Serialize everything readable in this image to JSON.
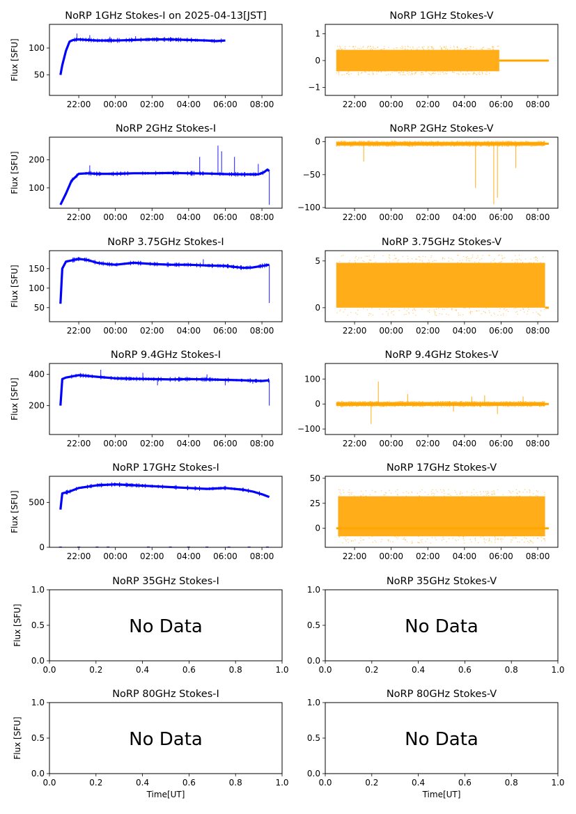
{
  "colors": {
    "stokes_i": "#0000ff",
    "stokes_v": "#ffa500",
    "axes": "#000000"
  },
  "chart_data": [
    {
      "id": "i1",
      "type": "line",
      "title": "NoRP 1GHz Stokes-I on 2025-04-13[JST]",
      "xlabel": "",
      "ylabel": "Flux [SFU]",
      "xlim": [
        20.4,
        33.1
      ],
      "ylim": [
        12,
        144
      ],
      "xticks": [
        22,
        24,
        26,
        28,
        30,
        32
      ],
      "xtick_labels": [
        "22:00",
        "00:00",
        "02:00",
        "04:00",
        "06:00",
        "08:00"
      ],
      "yticks": [
        50,
        100
      ],
      "ytick_labels": [
        "50",
        "100"
      ],
      "series": [
        {
          "color": "#0000ff",
          "x": [
            21.0,
            21.1,
            21.3,
            21.5,
            21.7,
            22.0,
            22.5,
            23.0,
            24.0,
            25.0,
            26.0,
            27.0,
            28.0,
            29.0,
            29.5,
            30.0
          ],
          "y": [
            50,
            68,
            95,
            112,
            115,
            116,
            115,
            114,
            114,
            115,
            116,
            116,
            115,
            114,
            113,
            114
          ]
        }
      ],
      "spikes": [
        {
          "color": "#0000ff",
          "x": [
            21.9,
            22.6,
            23.7,
            25.1
          ],
          "y": [
            127,
            124,
            121,
            122
          ]
        }
      ],
      "noise": null,
      "no_data": false
    },
    {
      "id": "v1",
      "type": "scatter",
      "title": "NoRP 1GHz Stokes-V",
      "xlabel": "",
      "ylabel": "",
      "xlim": [
        20.4,
        33.1
      ],
      "ylim": [
        -1.3,
        1.35
      ],
      "xticks": [
        22,
        24,
        26,
        28,
        30,
        32
      ],
      "xtick_labels": [
        "22:00",
        "00:00",
        "02:00",
        "04:00",
        "06:00",
        "08:00"
      ],
      "yticks": [
        -1,
        0,
        1
      ],
      "ytick_labels": [
        "−1",
        "0",
        "1"
      ],
      "series": [
        {
          "color": "#ffa500",
          "x": [
            29.9,
            32.6
          ],
          "y": [
            0,
            0
          ]
        }
      ],
      "spikes": [],
      "noise": {
        "color": "#ffa500",
        "x_start": 21.0,
        "x_end": 29.9,
        "center": 0,
        "amplitude": 0.4
      },
      "no_data": false
    },
    {
      "id": "i2",
      "type": "line",
      "title": "NoRP 2GHz Stokes-I",
      "xlabel": "",
      "ylabel": "Flux [SFU]",
      "xlim": [
        20.4,
        33.1
      ],
      "ylim": [
        28,
        280
      ],
      "xticks": [
        22,
        24,
        26,
        28,
        30,
        32
      ],
      "xtick_labels": [
        "22:00",
        "00:00",
        "02:00",
        "04:00",
        "06:00",
        "08:00"
      ],
      "yticks": [
        100,
        200
      ],
      "ytick_labels": [
        "100",
        "200"
      ],
      "series": [
        {
          "color": "#0000ff",
          "x": [
            21.0,
            21.3,
            21.6,
            22.0,
            22.5,
            23.0,
            24.0,
            25.0,
            26.0,
            27.0,
            28.0,
            29.0,
            30.0,
            31.0,
            31.8,
            32.1,
            32.3,
            32.4
          ],
          "y": [
            40,
            80,
            125,
            150,
            152,
            150,
            150,
            152,
            152,
            153,
            152,
            151,
            149,
            148,
            148,
            155,
            165,
            160
          ]
        }
      ],
      "spikes": [
        {
          "color": "#0000ff",
          "x": [
            22.6,
            28.6,
            29.6,
            29.8,
            30.5,
            31.8,
            32.4
          ],
          "y": [
            180,
            210,
            250,
            230,
            210,
            185,
            40
          ]
        }
      ],
      "noise": null,
      "no_data": false
    },
    {
      "id": "v2",
      "type": "scatter",
      "title": "NoRP 2GHz Stokes-V",
      "xlabel": "",
      "ylabel": "",
      "xlim": [
        20.4,
        33.1
      ],
      "ylim": [
        -101,
        7
      ],
      "xticks": [
        22,
        24,
        26,
        28,
        30,
        32
      ],
      "xtick_labels": [
        "22:00",
        "00:00",
        "02:00",
        "04:00",
        "06:00",
        "08:00"
      ],
      "yticks": [
        -100,
        -50,
        0
      ],
      "ytick_labels": [
        "−100",
        "−50",
        "0"
      ],
      "series": [
        {
          "color": "#ffa500",
          "x": [
            21.0,
            32.6
          ],
          "y": [
            -3,
            -3
          ]
        }
      ],
      "spikes": [
        {
          "color": "#ffa500",
          "x": [
            22.5,
            28.6,
            29.6,
            29.8,
            30.8
          ],
          "y": [
            -30,
            -70,
            -95,
            -85,
            -40
          ]
        }
      ],
      "noise": {
        "color": "#ffa500",
        "x_start": 21.0,
        "x_end": 32.4,
        "center": -3,
        "amplitude": 3
      },
      "no_data": false
    },
    {
      "id": "i3",
      "type": "line",
      "title": "NoRP 3.75GHz Stokes-I",
      "xlabel": "",
      "ylabel": "Flux [SFU]",
      "xlim": [
        20.4,
        33.1
      ],
      "ylim": [
        14,
        196
      ],
      "xticks": [
        22,
        24,
        26,
        28,
        30,
        32
      ],
      "xtick_labels": [
        "22:00",
        "00:00",
        "02:00",
        "04:00",
        "06:00",
        "08:00"
      ],
      "yticks": [
        50,
        100,
        150
      ],
      "ytick_labels": [
        "50",
        "100",
        "150"
      ],
      "series": [
        {
          "color": "#0000ff",
          "x": [
            21.0,
            21.1,
            21.3,
            22.0,
            22.5,
            23.0,
            23.5,
            24.0,
            25.0,
            26.0,
            27.0,
            28.0,
            29.0,
            30.0,
            31.0,
            31.5,
            32.0,
            32.4
          ],
          "y": [
            60,
            150,
            168,
            175,
            172,
            165,
            162,
            160,
            165,
            162,
            160,
            160,
            158,
            157,
            152,
            153,
            157,
            160
          ]
        }
      ],
      "spikes": [
        {
          "color": "#0000ff",
          "x": [
            28.8,
            32.4
          ],
          "y": [
            174,
            62
          ]
        }
      ],
      "noise": null,
      "no_data": false
    },
    {
      "id": "v3",
      "type": "scatter",
      "title": "NoRP 3.75GHz Stokes-V",
      "xlabel": "",
      "ylabel": "",
      "xlim": [
        20.4,
        33.1
      ],
      "ylim": [
        -1.5,
        6.1
      ],
      "xticks": [
        22,
        24,
        26,
        28,
        30,
        32
      ],
      "xtick_labels": [
        "22:00",
        "00:00",
        "02:00",
        "04:00",
        "06:00",
        "08:00"
      ],
      "yticks": [
        0,
        5
      ],
      "ytick_labels": [
        "0",
        "5"
      ],
      "series": [
        {
          "color": "#ffa500",
          "x": [
            32.4,
            32.6
          ],
          "y": [
            0,
            0
          ]
        }
      ],
      "spikes": [],
      "noise": {
        "color": "#ffa500",
        "x_start": 21.0,
        "x_end": 32.4,
        "center": 2.4,
        "amplitude": 2.4
      },
      "no_data": false
    },
    {
      "id": "i4",
      "type": "line",
      "title": "NoRP 9.4GHz Stokes-I",
      "xlabel": "",
      "ylabel": "Flux [SFU]",
      "xlim": [
        20.4,
        33.1
      ],
      "ylim": [
        15,
        470
      ],
      "xticks": [
        22,
        24,
        26,
        28,
        30,
        32
      ],
      "xtick_labels": [
        "22:00",
        "00:00",
        "02:00",
        "04:00",
        "06:00",
        "08:00"
      ],
      "yticks": [
        200,
        400
      ],
      "ytick_labels": [
        "200",
        "400"
      ],
      "series": [
        {
          "color": "#0000ff",
          "x": [
            21.0,
            21.1,
            21.3,
            22.0,
            22.5,
            23.0,
            24.0,
            25.0,
            26.0,
            27.0,
            28.0,
            29.0,
            30.0,
            31.0,
            31.5,
            32.0,
            32.4
          ],
          "y": [
            200,
            370,
            380,
            395,
            390,
            385,
            375,
            372,
            370,
            368,
            370,
            368,
            365,
            362,
            360,
            358,
            362
          ]
        }
      ],
      "spikes": [
        {
          "color": "#0000ff",
          "x": [
            23.2,
            25.5,
            26.3,
            29.0,
            30.0,
            31.5,
            32.4
          ],
          "y": [
            430,
            410,
            330,
            400,
            330,
            340,
            200
          ]
        }
      ],
      "noise": null,
      "no_data": false
    },
    {
      "id": "v4",
      "type": "scatter",
      "title": "NoRP 9.4GHz Stokes-V",
      "xlabel": "",
      "ylabel": "",
      "xlim": [
        20.4,
        33.1
      ],
      "ylim": [
        -122,
        162
      ],
      "xticks": [
        22,
        24,
        26,
        28,
        30,
        32
      ],
      "xtick_labels": [
        "22:00",
        "00:00",
        "02:00",
        "04:00",
        "06:00",
        "08:00"
      ],
      "yticks": [
        -100,
        0,
        100
      ],
      "ytick_labels": [
        "−100",
        "0",
        "100"
      ],
      "series": [
        {
          "color": "#ffa500",
          "x": [
            21.0,
            32.6
          ],
          "y": [
            0,
            0
          ]
        }
      ],
      "spikes": [
        {
          "color": "#ffa500",
          "x": [
            22.9,
            23.3,
            24.9,
            27.4,
            28.4,
            29.1,
            29.8,
            31.2
          ],
          "y": [
            -80,
            90,
            40,
            -30,
            30,
            35,
            -40,
            30
          ]
        }
      ],
      "noise": {
        "color": "#ffa500",
        "x_start": 21.0,
        "x_end": 32.4,
        "center": 0,
        "amplitude": 8
      },
      "no_data": false
    },
    {
      "id": "i5",
      "type": "line",
      "title": "NoRP 17GHz Stokes-I",
      "xlabel": "",
      "ylabel": "Flux [SFU]",
      "xlim": [
        20.4,
        33.1
      ],
      "ylim": [
        0,
        790
      ],
      "xticks": [
        22,
        24,
        26,
        28,
        30,
        32
      ],
      "xtick_labels": [
        "22:00",
        "00:00",
        "02:00",
        "04:00",
        "06:00",
        "08:00"
      ],
      "yticks": [
        0,
        500
      ],
      "ytick_labels": [
        "0",
        "500"
      ],
      "series": [
        {
          "color": "#0000ff",
          "x": [
            21.0,
            21.1,
            21.5,
            22.0,
            23.0,
            24.0,
            25.0,
            26.0,
            27.0,
            28.0,
            29.0,
            30.0,
            31.0,
            31.5,
            32.0,
            32.4
          ],
          "y": [
            420,
            600,
            620,
            660,
            690,
            700,
            690,
            680,
            670,
            660,
            650,
            660,
            640,
            620,
            590,
            560
          ]
        }
      ],
      "spikes": [],
      "noise": null,
      "baseline_points": {
        "color": "#0000ff",
        "x": [
          21.0,
          22.0,
          23.0,
          23.6,
          25.8,
          27.0,
          28.0,
          29.0,
          30.2,
          31.3,
          32.3
        ],
        "y": [
          0,
          0,
          0,
          0,
          0,
          0,
          0,
          0,
          0,
          0,
          0
        ]
      },
      "no_data": false
    },
    {
      "id": "v5",
      "type": "scatter",
      "title": "NoRP 17GHz Stokes-V",
      "xlabel": "",
      "ylabel": "",
      "xlim": [
        20.4,
        33.1
      ],
      "ylim": [
        -19,
        52
      ],
      "xticks": [
        22,
        24,
        26,
        28,
        30,
        32
      ],
      "xtick_labels": [
        "22:00",
        "00:00",
        "02:00",
        "04:00",
        "06:00",
        "08:00"
      ],
      "yticks": [
        0,
        25,
        50
      ],
      "ytick_labels": [
        "0",
        "25",
        "50"
      ],
      "series": [
        {
          "color": "#ffa500",
          "x": [
            21.0,
            32.6
          ],
          "y": [
            0,
            0
          ]
        }
      ],
      "spikes": [],
      "noise": {
        "color": "#ffa500",
        "x_start": 21.1,
        "x_end": 32.4,
        "center": 12,
        "amplitude": 20
      },
      "no_data": false
    },
    {
      "id": "i6",
      "type": "line",
      "title": "NoRP 35GHz Stokes-I",
      "xlabel": "",
      "ylabel": "Flux [SFU]",
      "xlim": [
        0,
        1
      ],
      "ylim": [
        0,
        1
      ],
      "xticks": [
        0,
        0.2,
        0.4,
        0.6,
        0.8,
        1.0
      ],
      "xtick_labels": [
        "0.0",
        "0.2",
        "0.4",
        "0.6",
        "0.8",
        "1.0"
      ],
      "yticks": [
        0,
        0.5,
        1.0
      ],
      "ytick_labels": [
        "0.0",
        "0.5",
        "1.0"
      ],
      "series": [],
      "spikes": [],
      "noise": null,
      "no_data": true,
      "no_data_label": "No Data"
    },
    {
      "id": "v6",
      "type": "line",
      "title": "NoRP 35GHz Stokes-V",
      "xlabel": "",
      "ylabel": "",
      "xlim": [
        0,
        1
      ],
      "ylim": [
        0,
        1
      ],
      "xticks": [
        0,
        0.2,
        0.4,
        0.6,
        0.8,
        1.0
      ],
      "xtick_labels": [
        "0.0",
        "0.2",
        "0.4",
        "0.6",
        "0.8",
        "1.0"
      ],
      "yticks": [
        0,
        0.5,
        1.0
      ],
      "ytick_labels": [
        "0.0",
        "0.5",
        "1.0"
      ],
      "series": [],
      "spikes": [],
      "noise": null,
      "no_data": true,
      "no_data_label": "No Data"
    },
    {
      "id": "i7",
      "type": "line",
      "title": "NoRP 80GHz Stokes-I",
      "xlabel": "Time[UT]",
      "ylabel": "Flux [SFU]",
      "xlim": [
        0,
        1
      ],
      "ylim": [
        0,
        1
      ],
      "xticks": [
        0,
        0.2,
        0.4,
        0.6,
        0.8,
        1.0
      ],
      "xtick_labels": [
        "0.0",
        "0.2",
        "0.4",
        "0.6",
        "0.8",
        "1.0"
      ],
      "yticks": [
        0,
        0.5,
        1.0
      ],
      "ytick_labels": [
        "0.0",
        "0.5",
        "1.0"
      ],
      "series": [],
      "spikes": [],
      "noise": null,
      "no_data": true,
      "no_data_label": "No Data"
    },
    {
      "id": "v7",
      "type": "line",
      "title": "NoRP 80GHz Stokes-V",
      "xlabel": "Time[UT]",
      "ylabel": "",
      "xlim": [
        0,
        1
      ],
      "ylim": [
        0,
        1
      ],
      "xticks": [
        0,
        0.2,
        0.4,
        0.6,
        0.8,
        1.0
      ],
      "xtick_labels": [
        "0.0",
        "0.2",
        "0.4",
        "0.6",
        "0.8",
        "1.0"
      ],
      "yticks": [
        0,
        0.5,
        1.0
      ],
      "ytick_labels": [
        "0.0",
        "0.5",
        "1.0"
      ],
      "series": [],
      "spikes": [],
      "noise": null,
      "no_data": true,
      "no_data_label": "No Data"
    }
  ]
}
